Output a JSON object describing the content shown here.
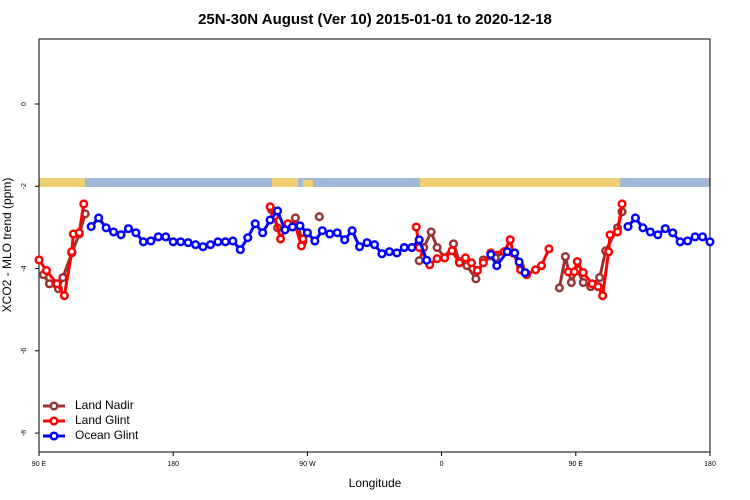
{
  "chart_data": {
    "type": "line",
    "title": "25N-30N August (Ver 10)   2015-01-01 to 2020-12-18",
    "x_label": "Longitude",
    "y_label": "XCO2 - MLO trend (ppm)",
    "xlim": [
      90,
      540
    ],
    "xticks": [
      {
        "value": 90,
        "label": "90 E"
      },
      180,
      {
        "value": 270,
        "label": "90 W"
      },
      {
        "value": 360,
        "label": "0"
      },
      {
        "value": 450,
        "label": "90 E"
      },
      {
        "value": 540,
        "label": "180"
      }
    ],
    "ylim": [
      -8.46,
      1.58
    ],
    "yticks": [
      0,
      -2,
      -4,
      -6,
      -8
    ],
    "legend": "bottomleft",
    "series": [
      {
        "name": "Land Nadir",
        "color": "#993333",
        "x": [
          93,
          97,
          103,
          106,
          112,
          117,
          121,
          180,
          246,
          250,
          256,
          262,
          267,
          272,
          278,
          300,
          345,
          348,
          353,
          357,
          362,
          368,
          372,
          377,
          383,
          388,
          396,
          402,
          408,
          413,
          417,
          430,
          439,
          443,
          447,
          451,
          455,
          460,
          466,
          470,
          478,
          481
        ],
        "values": [
          -4.15,
          -4.37,
          -4.49,
          -4.22,
          -3.62,
          -3.16,
          -2.67,
          null,
          -2.57,
          -3.01,
          -3.01,
          -2.77,
          -3.35,
          null,
          -2.74,
          null,
          -3.81,
          -3.49,
          -3.11,
          -3.49,
          -3.74,
          -3.4,
          -3.83,
          -3.93,
          -4.25,
          -3.79,
          -3.74,
          -3.59,
          null,
          -3.96,
          -4.13,
          null,
          -4.47,
          -3.71,
          -4.34,
          -4.03,
          -4.34,
          -4.44,
          -4.22,
          -3.57,
          -3.01,
          -2.62
        ]
      },
      {
        "name": "Land Glint",
        "color": "#ff0000",
        "x": [
          90,
          95,
          102,
          107,
          112,
          113,
          117,
          120,
          180,
          245,
          248,
          252,
          257,
          262,
          266,
          267,
          300,
          343,
          345,
          352,
          357,
          362,
          367,
          372,
          376,
          380,
          384,
          388,
          393,
          402,
          406,
          408,
          413,
          417,
          423,
          427,
          432,
          440,
          445,
          449,
          451,
          455,
          461,
          465,
          468,
          472,
          473,
          478,
          481
        ],
        "values": [
          -3.79,
          -4.05,
          -4.37,
          -4.66,
          -3.59,
          -3.16,
          -3.13,
          -2.43,
          null,
          -2.5,
          -2.72,
          -3.28,
          -2.91,
          -2.96,
          -3.45,
          -3.28,
          null,
          -2.99,
          -3.49,
          -3.91,
          -3.76,
          -3.74,
          -3.57,
          -3.86,
          -3.74,
          -3.86,
          -4.05,
          -3.86,
          -3.62,
          -3.59,
          -3.3,
          -3.62,
          -4.03,
          -4.15,
          -4.03,
          -3.93,
          -3.52,
          null,
          -4.08,
          -4.08,
          -3.83,
          -4.1,
          -4.37,
          -4.44,
          -4.66,
          -3.59,
          -3.18,
          -3.11,
          -2.43
        ]
      },
      {
        "name": "Ocean Glint",
        "color": "#0000ff",
        "x": [
          125,
          130,
          135,
          140,
          145,
          150,
          155,
          160,
          165,
          170,
          175,
          180,
          185,
          190,
          195,
          200,
          205,
          210,
          215,
          220,
          225,
          230,
          235,
          240,
          245,
          250,
          255,
          260,
          265,
          270,
          275,
          280,
          285,
          290,
          295,
          300,
          305,
          310,
          315,
          320,
          325,
          330,
          335,
          340,
          345,
          350,
          370,
          393,
          397,
          404,
          409,
          412,
          416,
          450,
          485,
          490,
          495,
          500,
          505,
          510,
          515,
          520,
          525,
          530,
          535,
          540
        ],
        "values": [
          -2.98,
          -2.77,
          -3.01,
          -3.11,
          -3.18,
          -3.03,
          -3.13,
          -3.35,
          -3.33,
          -3.23,
          -3.23,
          -3.35,
          -3.35,
          -3.37,
          -3.42,
          -3.47,
          -3.42,
          -3.35,
          -3.35,
          -3.33,
          -3.54,
          -3.25,
          -2.91,
          -3.13,
          -2.82,
          -2.6,
          -3.06,
          -2.99,
          -2.96,
          -3.13,
          -3.33,
          -3.08,
          -3.16,
          -3.13,
          -3.3,
          -3.08,
          -3.47,
          -3.37,
          -3.42,
          -3.64,
          -3.59,
          -3.62,
          -3.49,
          -3.49,
          -3.3,
          -3.8,
          null,
          -3.66,
          -3.93,
          -3.59,
          -3.62,
          -3.84,
          -4.1,
          null,
          -2.98,
          -2.77,
          -3.01,
          -3.11,
          -3.18,
          -3.03,
          -3.13,
          -3.35,
          -3.33,
          -3.23,
          -3.23,
          -3.35
        ]
      }
    ]
  }
}
